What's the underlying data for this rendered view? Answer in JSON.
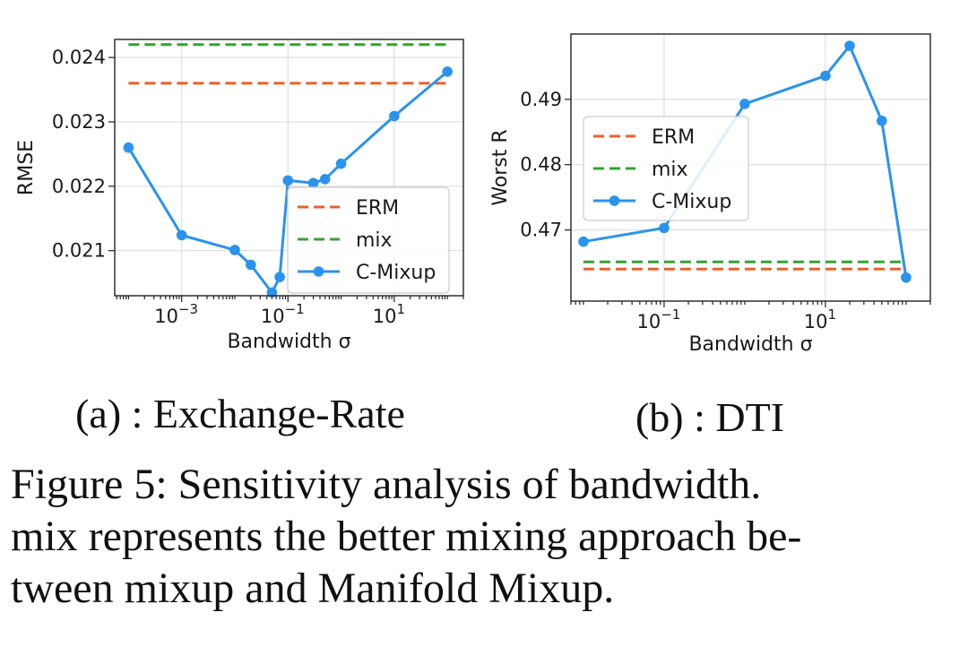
{
  "figure": {
    "subcaptions": [
      "(a) : Exchange-Rate",
      "(b) : DTI"
    ],
    "caption_lines": [
      "Figure 5:  Sensitivity analysis of bandwidth.",
      "mix represents the better mixing approach be-",
      "tween mixup and Manifold Mixup."
    ]
  },
  "colors": {
    "ERM": "#e8602c",
    "mix": "#35a135",
    "C-Mixup": "#2a93ee",
    "grid": "#d9d9d9",
    "axis": "#222222"
  },
  "chart_data": [
    {
      "id": "a",
      "type": "line",
      "title": "",
      "xlabel": "Bandwidth σ",
      "ylabel": "RMSE",
      "xscale": "log",
      "xlim": [
        5.5e-05,
        200
      ],
      "ylim": [
        0.0203,
        0.02428
      ],
      "grid": true,
      "legend": "lower-right",
      "xticks": [
        {
          "value": 0.001,
          "base": "10",
          "exp": "−3"
        },
        {
          "value": 0.1,
          "base": "10",
          "exp": "−1"
        },
        {
          "value": 10,
          "base": "10",
          "exp": "1"
        }
      ],
      "yticks": [
        {
          "value": 0.021,
          "label": "0.021"
        },
        {
          "value": 0.022,
          "label": "0.022"
        },
        {
          "value": 0.023,
          "label": "0.023"
        },
        {
          "value": 0.024,
          "label": "0.024"
        }
      ],
      "series": [
        {
          "name": "ERM",
          "style": "dashed",
          "x": [
            0.0001,
            100
          ],
          "y": [
            0.0236,
            0.0236
          ]
        },
        {
          "name": "mix",
          "style": "dashed",
          "x": [
            0.0001,
            100
          ],
          "y": [
            0.0242,
            0.0242
          ]
        },
        {
          "name": "C-Mixup",
          "style": "line-marker",
          "x": [
            0.0001,
            0.001,
            0.01,
            0.02,
            0.05,
            0.07,
            0.1,
            0.3,
            0.5,
            1,
            10,
            100
          ],
          "y": [
            0.0226,
            0.02124,
            0.02101,
            0.02078,
            0.02035,
            0.02059,
            0.02209,
            0.02205,
            0.02211,
            0.02235,
            0.02309,
            0.02378
          ]
        }
      ]
    },
    {
      "id": "b",
      "type": "line",
      "title": "",
      "xlabel": "Bandwidth σ",
      "ylabel": "Worst R",
      "xscale": "log",
      "xlim": [
        0.007,
        200
      ],
      "ylim": [
        0.4591,
        0.5
      ],
      "grid": true,
      "legend": "upper-left",
      "xticks": [
        {
          "value": 0.1,
          "base": "10",
          "exp": "−1"
        },
        {
          "value": 10,
          "base": "10",
          "exp": "1"
        }
      ],
      "yticks": [
        {
          "value": 0.47,
          "label": "0.47"
        },
        {
          "value": 0.48,
          "label": "0.48"
        },
        {
          "value": 0.49,
          "label": "0.49"
        }
      ],
      "series": [
        {
          "name": "ERM",
          "style": "dashed",
          "x": [
            0.01,
            100
          ],
          "y": [
            0.464,
            0.464
          ]
        },
        {
          "name": "mix",
          "style": "dashed",
          "x": [
            0.01,
            100
          ],
          "y": [
            0.4651,
            0.4651
          ]
        },
        {
          "name": "C-Mixup",
          "style": "line-marker",
          "x": [
            0.01,
            0.1,
            1,
            10,
            20,
            50,
            100
          ],
          "y": [
            0.4682,
            0.4703,
            0.4893,
            0.4936,
            0.4982,
            0.4867,
            0.4627
          ]
        }
      ]
    }
  ]
}
